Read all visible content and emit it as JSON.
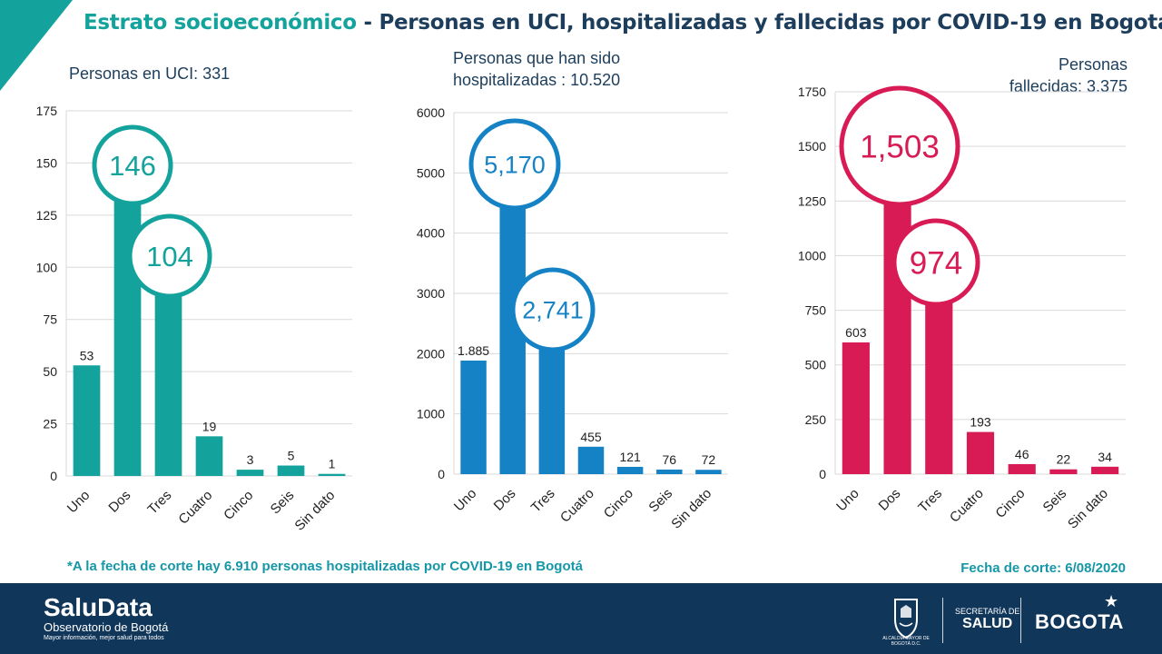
{
  "header": {
    "title_accent": "Estrato socioeconómico",
    "title_rest": " - Personas en UCI, hospitalizadas y fallecidas por COVID-19 en Bogotá"
  },
  "colors": {
    "teal": "#13a39c",
    "blue": "#1482c5",
    "crimson": "#d81b55",
    "navy": "#10365a",
    "title_text": "#1c3e5c"
  },
  "chart_data": [
    {
      "type": "bar",
      "title": "Personas en UCI: 331",
      "categories": [
        "Uno",
        "Dos",
        "Tres",
        "Cuatro",
        "Cinco",
        "Seis",
        "Sin dato"
      ],
      "values": [
        53,
        146,
        104,
        19,
        3,
        5,
        1
      ],
      "value_labels": [
        "53",
        "146",
        "104",
        "19",
        "3",
        "5",
        "1"
      ],
      "highlight": [
        1,
        2
      ],
      "ylim": [
        0,
        175
      ],
      "yticks": [
        0,
        25,
        50,
        75,
        100,
        125,
        150,
        175
      ],
      "ytick_labels": [
        "0",
        "25",
        "50",
        "75",
        "100",
        "125",
        "150",
        "175"
      ],
      "grid": true,
      "color": "#13a39c"
    },
    {
      "type": "bar",
      "title": "Personas que han sido hospitalizadas : 10.520",
      "title_lines": [
        "Personas que han sido",
        "hospitalizadas : 10.520"
      ],
      "categories": [
        "Uno",
        "Dos",
        "Tres",
        "Cuatro",
        "Cinco",
        "Seis",
        "Sin dato"
      ],
      "values": [
        1885,
        5170,
        2741,
        455,
        121,
        76,
        72
      ],
      "value_labels": [
        "1.885",
        "5,170",
        "2,741",
        "455",
        "121",
        "76",
        "72"
      ],
      "highlight": [
        1,
        2
      ],
      "ylim": [
        0,
        6000
      ],
      "yticks": [
        0,
        1000,
        2000,
        3000,
        4000,
        5000,
        6000
      ],
      "ytick_labels": [
        "0",
        "1000",
        "2000",
        "3000",
        "4000",
        "5000",
        "6000"
      ],
      "grid": true,
      "color": "#1482c5"
    },
    {
      "type": "bar",
      "title": "Personas fallecidas: 3.375",
      "title_lines": [
        "Personas",
        "fallecidas: 3.375"
      ],
      "categories": [
        "Uno",
        "Dos",
        "Tres",
        "Cuatro",
        "Cinco",
        "Seis",
        "Sin dato"
      ],
      "values": [
        603,
        1503,
        974,
        193,
        46,
        22,
        34
      ],
      "value_labels": [
        "603",
        "1,503",
        "974",
        "193",
        "46",
        "22",
        "34"
      ],
      "highlight": [
        1,
        2
      ],
      "ylim": [
        0,
        1750
      ],
      "yticks": [
        0,
        250,
        500,
        750,
        1000,
        1250,
        1500,
        1750
      ],
      "ytick_labels": [
        "0",
        "250",
        "500",
        "750",
        "1000",
        "1250",
        "1500",
        "1750"
      ],
      "grid": true,
      "color": "#d81b55"
    }
  ],
  "footnote": "*A la fecha de corte hay 6.910 personas hospitalizadas por COVID-19 en Bogotá",
  "cutoff": "Fecha de corte: 6/08/2020",
  "footer": {
    "brand_name": "SaluData",
    "brand_sub": "Observatorio de Bogotá",
    "brand_tag": "Mayor información, mejor salud para todos",
    "crest_caption": "ALCALDÍA MAYOR DE BOGOTÁ D.C.",
    "secretaria_line1": "SECRETARÍA DE",
    "secretaria_line2": "SALUD",
    "bogota": "BOGOTA",
    "crest_icon": "coat-of-arms-icon",
    "star_icon": "star-icon"
  }
}
